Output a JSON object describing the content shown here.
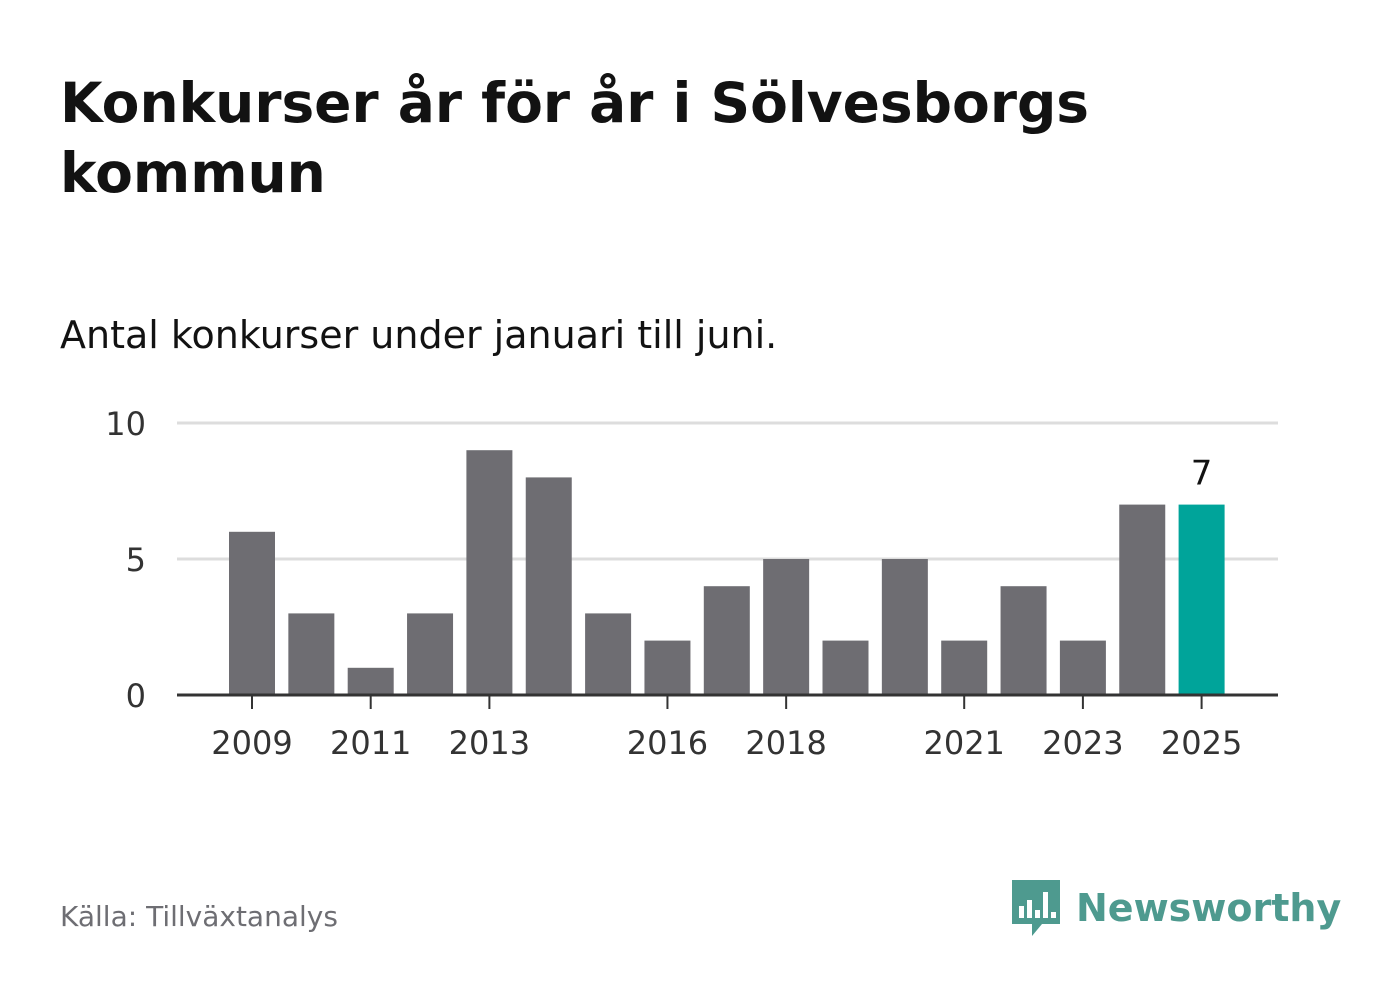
{
  "header": {
    "title": "Konkurser år för år i Sölvesborgs kommun",
    "subtitle": "Antal konkurser under januari till juni."
  },
  "footer": {
    "source": "Källa: Tillväxtanalys",
    "brand": "Newsworthy"
  },
  "colors": {
    "bar": "#6e6d72",
    "highlight": "#00a49a",
    "grid": "#dddddd",
    "axis": "#333333",
    "tick_text": "#333333",
    "brand": "#4e9a8f"
  },
  "icons": {
    "brand_logo": "bar-chart-speech-bubble-icon"
  },
  "chart_data": {
    "type": "bar",
    "title": "Konkurser år för år i Sölvesborgs kommun",
    "subtitle": "Antal konkurser under januari till juni.",
    "categories": [
      2009,
      2010,
      2011,
      2012,
      2013,
      2014,
      2015,
      2016,
      2017,
      2018,
      2019,
      2020,
      2021,
      2022,
      2023,
      2024,
      2025
    ],
    "values": [
      6,
      3,
      1,
      3,
      9,
      8,
      3,
      2,
      4,
      5,
      2,
      5,
      2,
      4,
      2,
      7,
      7
    ],
    "xtick_labels": [
      "2009",
      "2011",
      "2013",
      "2016",
      "2018",
      "2021",
      "2023",
      "2025"
    ],
    "yticks": [
      0,
      5,
      10
    ],
    "ylim": [
      0,
      10
    ],
    "xlabel": "",
    "ylabel": "",
    "grid": true,
    "highlight": {
      "category": 2025,
      "label": "7"
    }
  }
}
